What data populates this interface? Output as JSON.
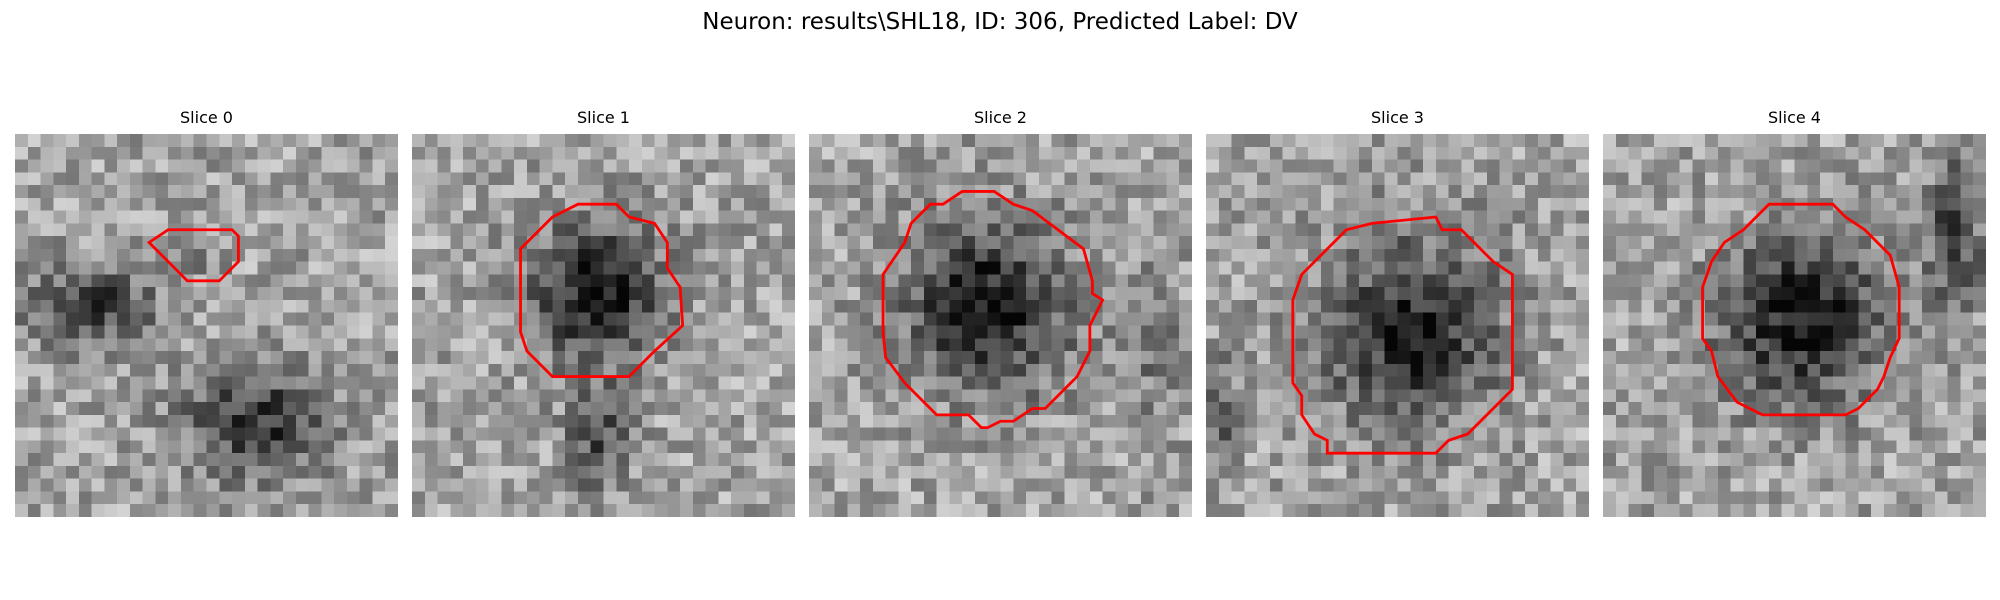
{
  "figure": {
    "title": "Neuron: results\\SHL18, ID: 306, Predicted Label: DV"
  },
  "panels": [
    {
      "title": "Slice 0"
    },
    {
      "title": "Slice 1"
    },
    {
      "title": "Slice 2"
    },
    {
      "title": "Slice 3"
    },
    {
      "title": "Slice 4"
    }
  ],
  "colors": {
    "contour": "#ff0000",
    "background": "#ffffff"
  },
  "colormap": "gray"
}
